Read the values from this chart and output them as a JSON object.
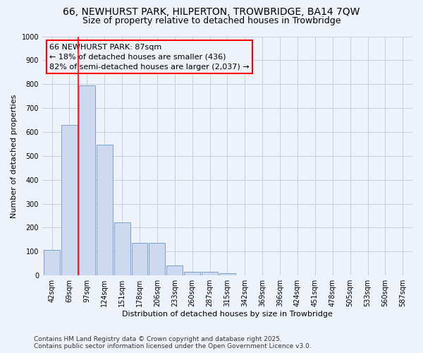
{
  "title_line1": "66, NEWHURST PARK, HILPERTON, TROWBRIDGE, BA14 7QW",
  "title_line2": "Size of property relative to detached houses in Trowbridge",
  "xlabel": "Distribution of detached houses by size in Trowbridge",
  "ylabel": "Number of detached properties",
  "bar_fill_color": "#ccd9ee",
  "bar_edge_color": "#7a9fd4",
  "categories": [
    "42sqm",
    "69sqm",
    "97sqm",
    "124sqm",
    "151sqm",
    "178sqm",
    "206sqm",
    "233sqm",
    "260sqm",
    "287sqm",
    "315sqm",
    "342sqm",
    "369sqm",
    "396sqm",
    "424sqm",
    "451sqm",
    "478sqm",
    "505sqm",
    "533sqm",
    "560sqm",
    "587sqm"
  ],
  "values": [
    108,
    630,
    795,
    547,
    222,
    137,
    135,
    42,
    15,
    14,
    10,
    0,
    0,
    0,
    0,
    0,
    0,
    0,
    0,
    0,
    0
  ],
  "ylim": [
    0,
    1000
  ],
  "yticks": [
    0,
    100,
    200,
    300,
    400,
    500,
    600,
    700,
    800,
    900,
    1000
  ],
  "property_label": "66 NEWHURST PARK: 87sqm",
  "pct_smaller": "18% of detached houses are smaller (436)",
  "pct_larger": "82% of semi-detached houses are larger (2,037)",
  "vline_bar_index": 2,
  "footer_line1": "Contains HM Land Registry data © Crown copyright and database right 2025.",
  "footer_line2": "Contains public sector information licensed under the Open Government Licence v3.0.",
  "bg_color": "#eef2fa",
  "grid_color": "#c5cedf",
  "title_fontsize": 10,
  "subtitle_fontsize": 9,
  "axis_label_fontsize": 8,
  "tick_fontsize": 7,
  "annotation_fontsize": 8,
  "footer_fontsize": 6.5
}
